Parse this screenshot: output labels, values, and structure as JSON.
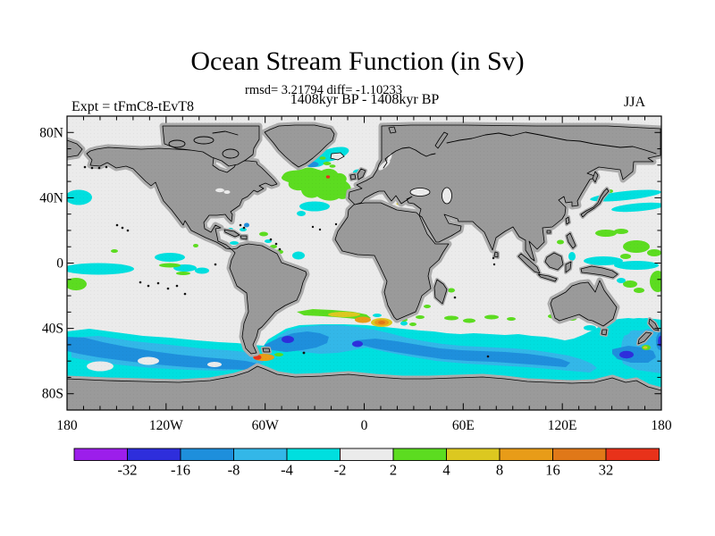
{
  "header": {
    "title": "Ocean Stream Function (in Sv)",
    "stats_line": "rmsd= 3.21794 diff= -1.10233",
    "period_line": "1408kyr BP - 1408kyr BP",
    "experiment_label": "Expt = tFmC8-tEvT8",
    "season_label": "JJA"
  },
  "chart_data": {
    "type": "heatmap",
    "subtype": "filled-contour world map of ocean stream function difference",
    "title": "Ocean Stream Function (in Sv)",
    "stats": {
      "rmsd": 3.21794,
      "diff": -1.10233
    },
    "comparison": "1408kyr BP - 1408kyr BP",
    "experiment": "tFmC8-tEvT8",
    "season": "JJA",
    "grid": "off",
    "x_axis": {
      "range_deg": [
        -180,
        180
      ],
      "tick_step_deg": 10,
      "labels": [
        {
          "lon": -180,
          "label": "180"
        },
        {
          "lon": -120,
          "label": "120W"
        },
        {
          "lon": -60,
          "label": "60W"
        },
        {
          "lon": 0,
          "label": "0"
        },
        {
          "lon": 60,
          "label": "60E"
        },
        {
          "lon": 120,
          "label": "120E"
        },
        {
          "lon": 180,
          "label": "180"
        }
      ]
    },
    "y_axis": {
      "range_deg": [
        -90,
        90
      ],
      "tick_step_deg": 10,
      "labels": [
        {
          "lat": 80,
          "label": "80N"
        },
        {
          "lat": 40,
          "label": "40N"
        },
        {
          "lat": 0,
          "label": "0"
        },
        {
          "lat": -40,
          "label": "40S"
        },
        {
          "lat": -80,
          "label": "80S"
        }
      ]
    },
    "colorbar": {
      "units": "Sv",
      "levels": [
        -32,
        -16,
        -8,
        -4,
        -2,
        2,
        4,
        8,
        16,
        32
      ],
      "boundary_labels": [
        "-32",
        "-16",
        "-8",
        "-4",
        "-2",
        "2",
        "4",
        "8",
        "16",
        "32"
      ],
      "colors": [
        "#9C1EEB",
        "#2E2EDC",
        "#1E8FDC",
        "#33B7E8",
        "#00DFDF",
        "#EBEBEB",
        "#5CDC20",
        "#DCC820",
        "#E89C18",
        "#E07818",
        "#E8321A"
      ]
    },
    "map_colors": {
      "land": "#9A9A9A",
      "land_mask_halo": "#ACACAC",
      "ocean_near_zero": "#EBEBEB",
      "coastline": "#000000",
      "frame": "#000000"
    },
    "features": [
      {
        "region": "Southern Ocean circumpolar band (~45S-70S)",
        "anomaly_sv": "-2 to -16 with -16 to -32 cores near Drake Passage, south Indian Ocean and south of New Zealand"
      },
      {
        "region": "Drake Passage / Falkland area spot",
        "anomaly_sv": "+8 to +32"
      },
      {
        "region": "Brazil-Malvinas confluence streak (~40S South Atlantic)",
        "anomaly_sv": "+2 to +16"
      },
      {
        "region": "Agulhas region south of Africa (~40S)",
        "anomaly_sv": "+4 to +16"
      },
      {
        "region": "North Atlantic 45-55N blob",
        "anomaly_sv": "+2 to +4 with small +8 speck and -4 to -8 spot to the north"
      },
      {
        "region": "Irminger Sea south of Iceland/Greenland",
        "anomaly_sv": "-2 to -8"
      },
      {
        "region": "Kuroshio extension streaks (~35-40N Pacific)",
        "anomaly_sv": "-2 to -4"
      },
      {
        "region": "Subtropical North Pacific (~25-30N)",
        "anomaly_sv": "+2 to +4"
      },
      {
        "region": "Equatorial Pacific",
        "anomaly_sv": "-2 to -4 patches with +2 to +4 streaks"
      },
      {
        "region": "Western tropical Pacific / Coral Sea",
        "anomaly_sv": "-2 to -4 and +2 to +4 patches"
      },
      {
        "region": "Around New Zealand",
        "anomaly_sv": "-2 to -8"
      },
      {
        "region": "Continents and Arctic cap north of ~70N",
        "anomaly_sv": "masked gray"
      }
    ]
  }
}
